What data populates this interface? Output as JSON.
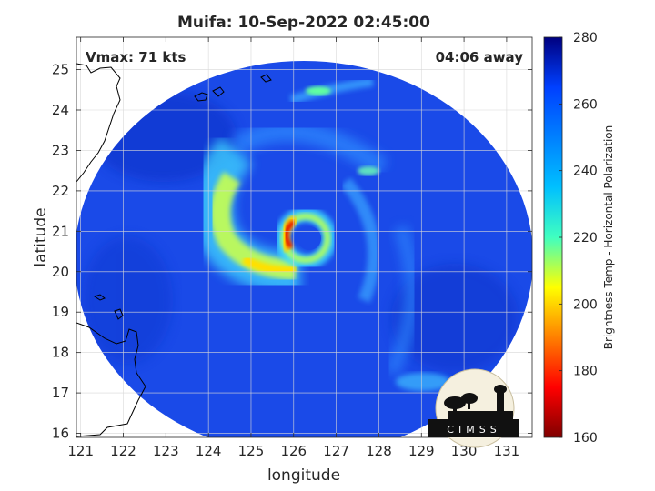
{
  "chart_data": {
    "type": "heatmap",
    "title": "Muifa: 10-Sep-2022 02:45:00",
    "xlabel": "longitude",
    "ylabel": "latitude",
    "xlim": [
      120.9,
      131.6
    ],
    "ylim": [
      15.9,
      25.8
    ],
    "x_ticks": [
      121,
      122,
      123,
      124,
      125,
      126,
      127,
      128,
      129,
      130,
      131
    ],
    "y_ticks": [
      16,
      17,
      18,
      19,
      20,
      21,
      22,
      23,
      24,
      25
    ],
    "grid": true,
    "annotations": {
      "vmax": "Vmax: 71 kts",
      "time_away": "04:06 away"
    },
    "colorbar": {
      "label": "Brightness Temp - Horizontal Polarization",
      "range": [
        160,
        280
      ],
      "ticks": [
        160,
        180,
        200,
        220,
        240,
        260,
        280
      ],
      "colormap": "jet"
    },
    "storm_center": {
      "lon": 126.4,
      "lat": 20.9
    },
    "scan_center": {
      "lon": 126.1,
      "lat": 20.7
    }
  },
  "logo": {
    "text": "CIMSS"
  },
  "colors": {
    "background": "#1a4fe0",
    "eyewall": "#d40000",
    "text": "#262626"
  }
}
